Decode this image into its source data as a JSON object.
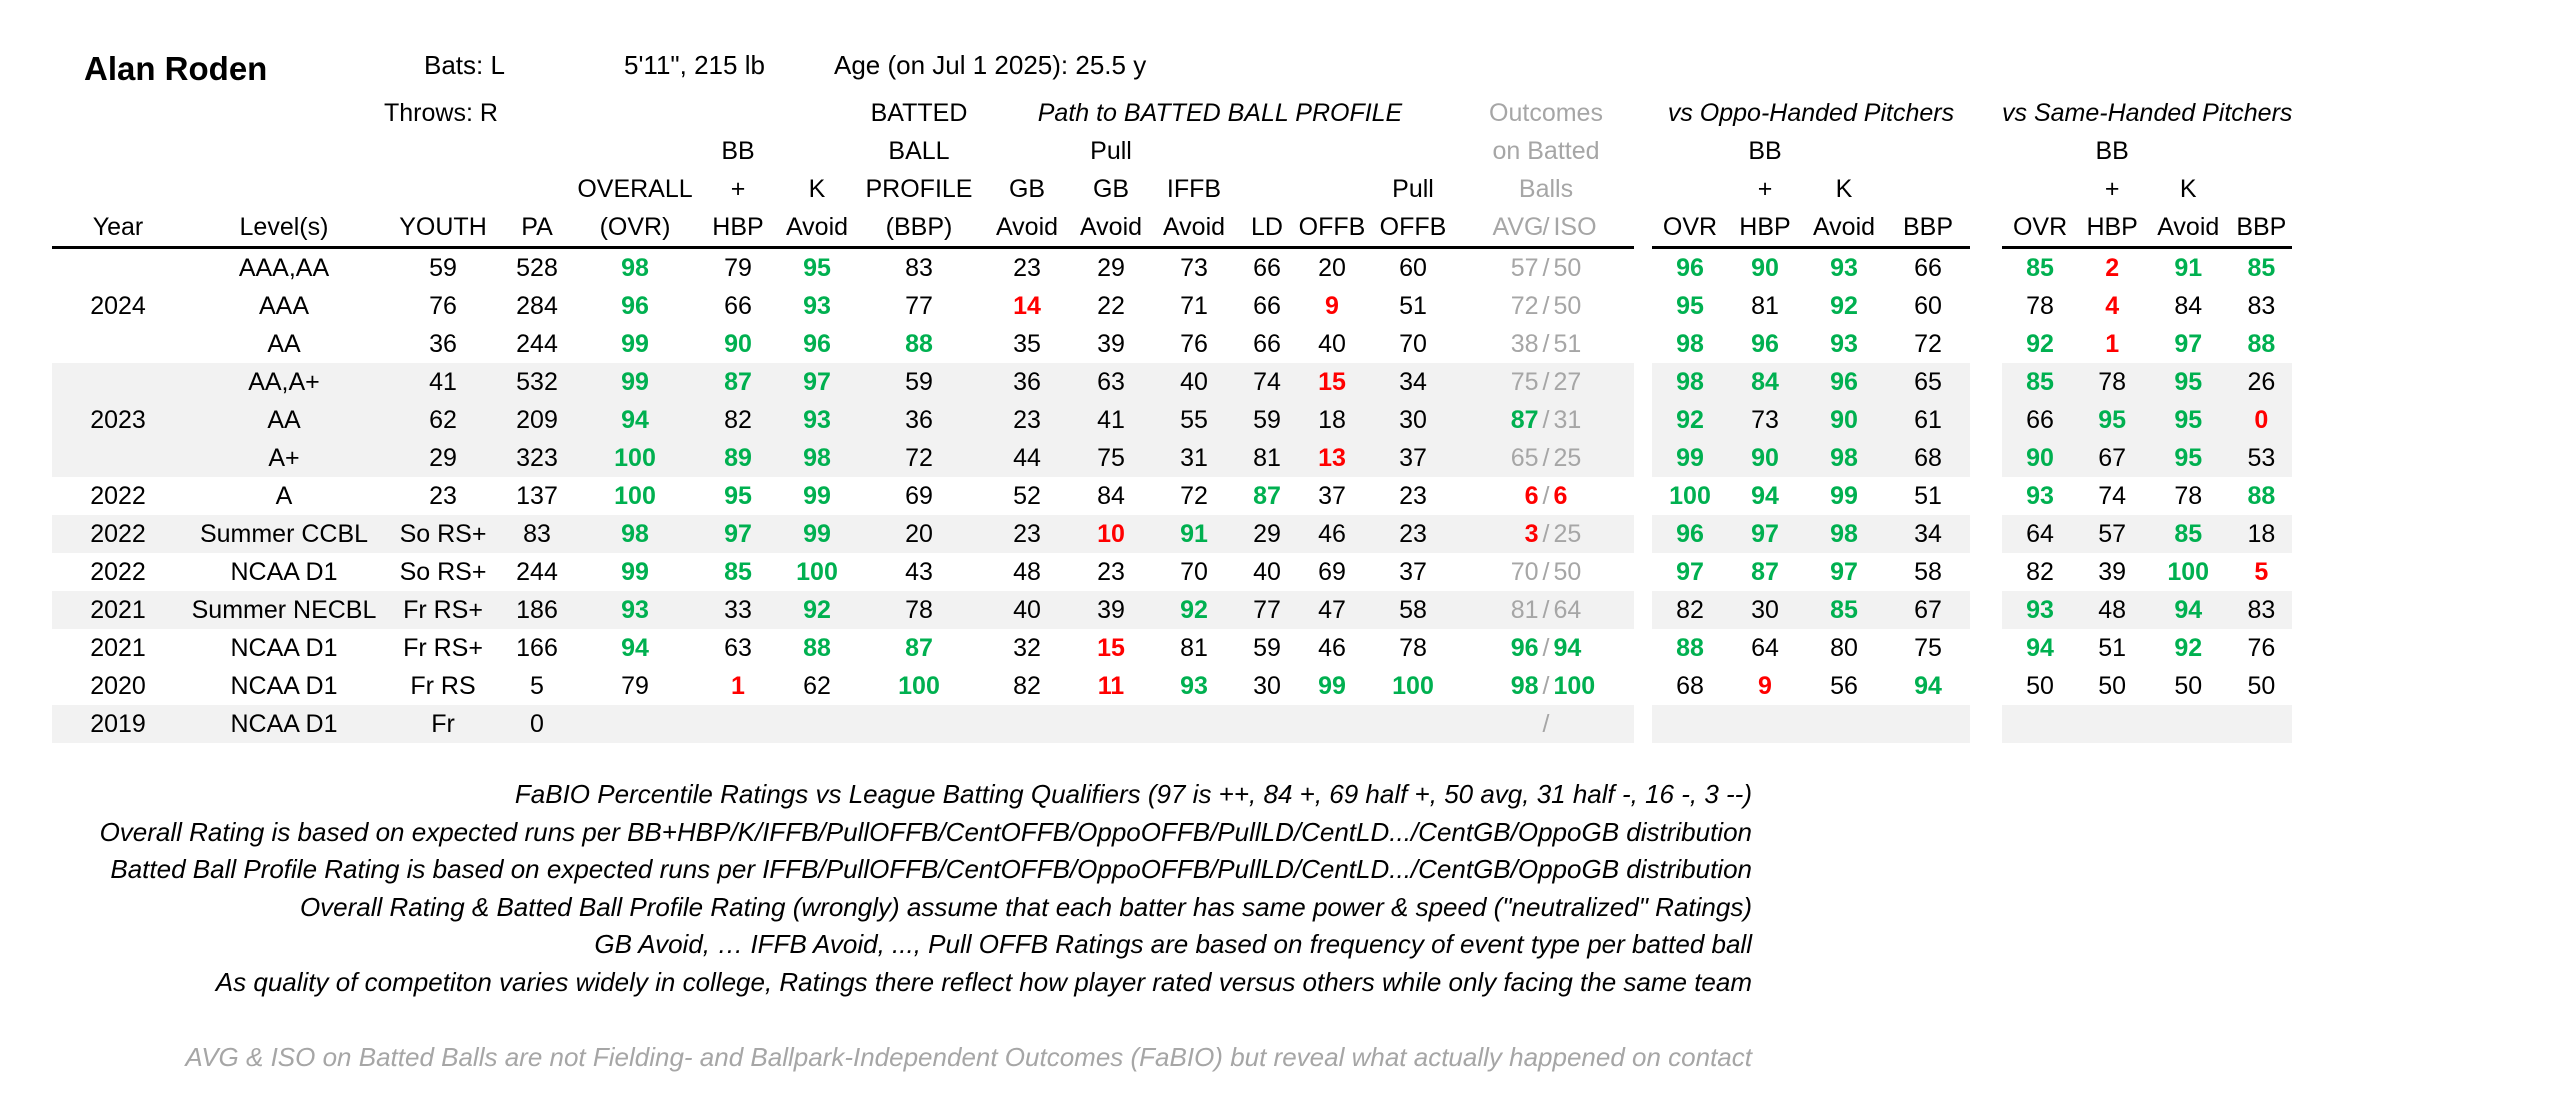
{
  "player": {
    "name": "Alan Roden",
    "bats": "Bats: L",
    "throws": "Throws: R",
    "size": "5'11\", 215 lb",
    "age": "Age (on Jul 1 2025): 25.5 y"
  },
  "headers": {
    "path_title": "Path to BATTED BALL PROFILE",
    "outcomes": [
      "Outcomes",
      "on Batted",
      "Balls",
      "AVG",
      "ISO"
    ],
    "vs_oppo": "vs Oppo-Handed Pitchers",
    "vs_same": "vs Same-Handed Pitchers",
    "year": "Year",
    "levels": "Level(s)",
    "youth": "YOUTH",
    "pa": "PA",
    "overall": [
      "OVERALL",
      "(OVR)"
    ],
    "bbhbp": [
      "BB",
      "+",
      "HBP"
    ],
    "kavoid": [
      "K",
      "Avoid"
    ],
    "bbp": [
      "BATTED",
      "BALL",
      "PROFILE",
      "(BBP)"
    ],
    "gbavoid": [
      "GB",
      "Avoid"
    ],
    "pullgb": [
      "Pull",
      "GB",
      "Avoid"
    ],
    "iffb": [
      "IFFB",
      "Avoid"
    ],
    "ld": "LD",
    "offb": "OFFB",
    "pulloffb": [
      "Pull",
      "OFFB"
    ],
    "ovr": "OVR",
    "bbp_short": "BBP",
    "slash": "/"
  },
  "colors": {
    "good": "#00b050",
    "bad": "#ff0000",
    "muted": "#a6a6a6"
  },
  "rows": [
    {
      "year": "",
      "level": "AAA,AA",
      "youth": "59",
      "pa": "528",
      "shade": false,
      "cells": [
        [
          "98",
          "g"
        ],
        [
          "79",
          ""
        ],
        [
          "95",
          "g"
        ],
        [
          "83",
          ""
        ],
        [
          "23",
          ""
        ],
        [
          "29",
          ""
        ],
        [
          "73",
          ""
        ],
        [
          "66",
          ""
        ],
        [
          "20",
          ""
        ],
        [
          "60",
          ""
        ]
      ],
      "avg": [
        "57",
        "gn"
      ],
      "iso": [
        "50",
        "gn"
      ],
      "oppo": [
        [
          "96",
          "g"
        ],
        [
          "90",
          "g"
        ],
        [
          "93",
          "g"
        ],
        [
          "66",
          ""
        ]
      ],
      "same": [
        [
          "85",
          "g"
        ],
        [
          "2",
          "r"
        ],
        [
          "91",
          "g"
        ],
        [
          "85",
          "g"
        ]
      ]
    },
    {
      "year": "2024",
      "level": "AAA",
      "youth": "76",
      "pa": "284",
      "shade": false,
      "cells": [
        [
          "96",
          "g"
        ],
        [
          "66",
          ""
        ],
        [
          "93",
          "g"
        ],
        [
          "77",
          ""
        ],
        [
          "14",
          "r"
        ],
        [
          "22",
          ""
        ],
        [
          "71",
          ""
        ],
        [
          "66",
          ""
        ],
        [
          "9",
          "r"
        ],
        [
          "51",
          ""
        ]
      ],
      "avg": [
        "72",
        "gn"
      ],
      "iso": [
        "50",
        "gn"
      ],
      "oppo": [
        [
          "95",
          "g"
        ],
        [
          "81",
          ""
        ],
        [
          "92",
          "g"
        ],
        [
          "60",
          ""
        ]
      ],
      "same": [
        [
          "78",
          ""
        ],
        [
          "4",
          "r"
        ],
        [
          "84",
          ""
        ],
        [
          "83",
          ""
        ]
      ]
    },
    {
      "year": "",
      "level": "AA",
      "youth": "36",
      "pa": "244",
      "shade": false,
      "cells": [
        [
          "99",
          "g"
        ],
        [
          "90",
          "g"
        ],
        [
          "96",
          "g"
        ],
        [
          "88",
          "g"
        ],
        [
          "35",
          ""
        ],
        [
          "39",
          ""
        ],
        [
          "76",
          ""
        ],
        [
          "66",
          ""
        ],
        [
          "40",
          ""
        ],
        [
          "70",
          ""
        ]
      ],
      "avg": [
        "38",
        "gn"
      ],
      "iso": [
        "51",
        "gn"
      ],
      "oppo": [
        [
          "98",
          "g"
        ],
        [
          "96",
          "g"
        ],
        [
          "93",
          "g"
        ],
        [
          "72",
          ""
        ]
      ],
      "same": [
        [
          "92",
          "g"
        ],
        [
          "1",
          "r"
        ],
        [
          "97",
          "g"
        ],
        [
          "88",
          "g"
        ]
      ]
    },
    {
      "year": "",
      "level": "AA,A+",
      "youth": "41",
      "pa": "532",
      "shade": true,
      "cells": [
        [
          "99",
          "g"
        ],
        [
          "87",
          "g"
        ],
        [
          "97",
          "g"
        ],
        [
          "59",
          ""
        ],
        [
          "36",
          ""
        ],
        [
          "63",
          ""
        ],
        [
          "40",
          ""
        ],
        [
          "74",
          ""
        ],
        [
          "15",
          "r"
        ],
        [
          "34",
          ""
        ]
      ],
      "avg": [
        "75",
        "gn"
      ],
      "iso": [
        "27",
        "gn"
      ],
      "oppo": [
        [
          "98",
          "g"
        ],
        [
          "84",
          "g"
        ],
        [
          "96",
          "g"
        ],
        [
          "65",
          ""
        ]
      ],
      "same": [
        [
          "85",
          "g"
        ],
        [
          "78",
          ""
        ],
        [
          "95",
          "g"
        ],
        [
          "26",
          ""
        ]
      ]
    },
    {
      "year": "2023",
      "level": "AA",
      "youth": "62",
      "pa": "209",
      "shade": true,
      "cells": [
        [
          "94",
          "g"
        ],
        [
          "82",
          ""
        ],
        [
          "93",
          "g"
        ],
        [
          "36",
          ""
        ],
        [
          "23",
          ""
        ],
        [
          "41",
          ""
        ],
        [
          "55",
          ""
        ],
        [
          "59",
          ""
        ],
        [
          "18",
          ""
        ],
        [
          "30",
          ""
        ]
      ],
      "avg": [
        "87",
        "g"
      ],
      "iso": [
        "31",
        "gn"
      ],
      "oppo": [
        [
          "92",
          "g"
        ],
        [
          "73",
          ""
        ],
        [
          "90",
          "g"
        ],
        [
          "61",
          ""
        ]
      ],
      "same": [
        [
          "66",
          ""
        ],
        [
          "95",
          "g"
        ],
        [
          "95",
          "g"
        ],
        [
          "0",
          "r"
        ]
      ]
    },
    {
      "year": "",
      "level": "A+",
      "youth": "29",
      "pa": "323",
      "shade": true,
      "cells": [
        [
          "100",
          "g"
        ],
        [
          "89",
          "g"
        ],
        [
          "98",
          "g"
        ],
        [
          "72",
          ""
        ],
        [
          "44",
          ""
        ],
        [
          "75",
          ""
        ],
        [
          "31",
          ""
        ],
        [
          "81",
          ""
        ],
        [
          "13",
          "r"
        ],
        [
          "37",
          ""
        ]
      ],
      "avg": [
        "65",
        "gn"
      ],
      "iso": [
        "25",
        "gn"
      ],
      "oppo": [
        [
          "99",
          "g"
        ],
        [
          "90",
          "g"
        ],
        [
          "98",
          "g"
        ],
        [
          "68",
          ""
        ]
      ],
      "same": [
        [
          "90",
          "g"
        ],
        [
          "67",
          ""
        ],
        [
          "95",
          "g"
        ],
        [
          "53",
          ""
        ]
      ]
    },
    {
      "year": "2022",
      "level": "A",
      "youth": "23",
      "pa": "137",
      "shade": false,
      "cells": [
        [
          "100",
          "g"
        ],
        [
          "95",
          "g"
        ],
        [
          "99",
          "g"
        ],
        [
          "69",
          ""
        ],
        [
          "52",
          ""
        ],
        [
          "84",
          ""
        ],
        [
          "72",
          ""
        ],
        [
          "87",
          "g"
        ],
        [
          "37",
          ""
        ],
        [
          "23",
          ""
        ]
      ],
      "avg": [
        "6",
        "r"
      ],
      "iso": [
        "6",
        "r"
      ],
      "oppo": [
        [
          "100",
          "g"
        ],
        [
          "94",
          "g"
        ],
        [
          "99",
          "g"
        ],
        [
          "51",
          ""
        ]
      ],
      "same": [
        [
          "93",
          "g"
        ],
        [
          "74",
          ""
        ],
        [
          "78",
          ""
        ],
        [
          "88",
          "g"
        ]
      ]
    },
    {
      "year": "2022",
      "level": "Summer CCBL",
      "youth": "So RS+",
      "pa": "83",
      "shade": true,
      "cells": [
        [
          "98",
          "g"
        ],
        [
          "97",
          "g"
        ],
        [
          "99",
          "g"
        ],
        [
          "20",
          ""
        ],
        [
          "23",
          ""
        ],
        [
          "10",
          "r"
        ],
        [
          "91",
          "g"
        ],
        [
          "29",
          ""
        ],
        [
          "46",
          ""
        ],
        [
          "23",
          ""
        ]
      ],
      "avg": [
        "3",
        "r"
      ],
      "iso": [
        "25",
        "gn"
      ],
      "oppo": [
        [
          "96",
          "g"
        ],
        [
          "97",
          "g"
        ],
        [
          "98",
          "g"
        ],
        [
          "34",
          ""
        ]
      ],
      "same": [
        [
          "64",
          ""
        ],
        [
          "57",
          ""
        ],
        [
          "85",
          "g"
        ],
        [
          "18",
          ""
        ]
      ]
    },
    {
      "year": "2022",
      "level": "NCAA D1",
      "youth": "So RS+",
      "pa": "244",
      "shade": false,
      "cells": [
        [
          "99",
          "g"
        ],
        [
          "85",
          "g"
        ],
        [
          "100",
          "g"
        ],
        [
          "43",
          ""
        ],
        [
          "48",
          ""
        ],
        [
          "23",
          ""
        ],
        [
          "70",
          ""
        ],
        [
          "40",
          ""
        ],
        [
          "69",
          ""
        ],
        [
          "37",
          ""
        ]
      ],
      "avg": [
        "70",
        "gn"
      ],
      "iso": [
        "50",
        "gn"
      ],
      "oppo": [
        [
          "97",
          "g"
        ],
        [
          "87",
          "g"
        ],
        [
          "97",
          "g"
        ],
        [
          "58",
          ""
        ]
      ],
      "same": [
        [
          "82",
          ""
        ],
        [
          "39",
          ""
        ],
        [
          "100",
          "g"
        ],
        [
          "5",
          "r"
        ]
      ]
    },
    {
      "year": "2021",
      "level": "Summer NECBL",
      "youth": "Fr RS+",
      "pa": "186",
      "shade": true,
      "cells": [
        [
          "93",
          "g"
        ],
        [
          "33",
          ""
        ],
        [
          "92",
          "g"
        ],
        [
          "78",
          ""
        ],
        [
          "40",
          ""
        ],
        [
          "39",
          ""
        ],
        [
          "92",
          "g"
        ],
        [
          "77",
          ""
        ],
        [
          "47",
          ""
        ],
        [
          "58",
          ""
        ]
      ],
      "avg": [
        "81",
        "gn"
      ],
      "iso": [
        "64",
        "gn"
      ],
      "oppo": [
        [
          "82",
          ""
        ],
        [
          "30",
          ""
        ],
        [
          "85",
          "g"
        ],
        [
          "67",
          ""
        ]
      ],
      "same": [
        [
          "93",
          "g"
        ],
        [
          "48",
          ""
        ],
        [
          "94",
          "g"
        ],
        [
          "83",
          ""
        ]
      ]
    },
    {
      "year": "2021",
      "level": "NCAA D1",
      "youth": "Fr RS+",
      "pa": "166",
      "shade": false,
      "cells": [
        [
          "94",
          "g"
        ],
        [
          "63",
          ""
        ],
        [
          "88",
          "g"
        ],
        [
          "87",
          "g"
        ],
        [
          "32",
          ""
        ],
        [
          "15",
          "r"
        ],
        [
          "81",
          ""
        ],
        [
          "59",
          ""
        ],
        [
          "46",
          ""
        ],
        [
          "78",
          ""
        ]
      ],
      "avg": [
        "96",
        "g"
      ],
      "iso": [
        "94",
        "g"
      ],
      "oppo": [
        [
          "88",
          "g"
        ],
        [
          "64",
          ""
        ],
        [
          "80",
          ""
        ],
        [
          "75",
          ""
        ]
      ],
      "same": [
        [
          "94",
          "g"
        ],
        [
          "51",
          ""
        ],
        [
          "92",
          "g"
        ],
        [
          "76",
          ""
        ]
      ]
    },
    {
      "year": "2020",
      "level": "NCAA D1",
      "youth": "Fr RS",
      "pa": "5",
      "shade": false,
      "cells": [
        [
          "79",
          ""
        ],
        [
          "1",
          "r"
        ],
        [
          "62",
          ""
        ],
        [
          "100",
          "g"
        ],
        [
          "82",
          ""
        ],
        [
          "11",
          "r"
        ],
        [
          "93",
          "g"
        ],
        [
          "30",
          ""
        ],
        [
          "99",
          "g"
        ],
        [
          "100",
          "g"
        ]
      ],
      "avg": [
        "98",
        "g"
      ],
      "iso": [
        "100",
        "g"
      ],
      "oppo": [
        [
          "68",
          ""
        ],
        [
          "9",
          "r"
        ],
        [
          "56",
          ""
        ],
        [
          "94",
          "g"
        ]
      ],
      "same": [
        [
          "50",
          ""
        ],
        [
          "50",
          ""
        ],
        [
          "50",
          ""
        ],
        [
          "50",
          ""
        ]
      ]
    },
    {
      "year": "2019",
      "level": "NCAA D1",
      "youth": "Fr",
      "pa": "0",
      "shade": true,
      "cells": [
        [
          "",
          ""
        ],
        [
          "",
          ""
        ],
        [
          "",
          ""
        ],
        [
          "",
          ""
        ],
        [
          "",
          ""
        ],
        [
          "",
          ""
        ],
        [
          "",
          ""
        ],
        [
          "",
          ""
        ],
        [
          "",
          ""
        ],
        [
          "",
          ""
        ]
      ],
      "avg": [
        "",
        ""
      ],
      "iso": [
        "",
        ""
      ],
      "oppo": [
        [
          "",
          ""
        ],
        [
          "",
          ""
        ],
        [
          "",
          ""
        ],
        [
          "",
          ""
        ]
      ],
      "same": [
        [
          "",
          ""
        ],
        [
          "",
          ""
        ],
        [
          "",
          ""
        ],
        [
          "",
          ""
        ]
      ]
    }
  ],
  "notes": [
    "FaBIO Percentile Ratings vs League Batting Qualifiers (97 is ++, 84 +, 69 half +, 50 avg, 31 half -, 16 -, 3 --)",
    "Overall Rating is based on expected runs per BB+HBP/K/IFFB/PullOFFB/CentOFFB/OppoOFFB/PullLD/CentLD.../CentGB/OppoGB distribution",
    "Batted Ball Profile Rating is based on expected runs per IFFB/PullOFFB/CentOFFB/OppoOFFB/PullLD/CentLD.../CentGB/OppoGB distribution",
    "Overall Rating & Batted Ball Profile Rating (wrongly) assume that each batter has same power & speed (\"neutralized\" Ratings)",
    "GB Avoid, … IFFB Avoid, ..., Pull OFFB Ratings are based on frequency of event type per batted ball",
    "As quality of competiton varies widely in college, Ratings there reflect how player rated versus others while only facing the same team"
  ],
  "footnote": "AVG & ISO on Batted Balls are not Fielding- and Ballpark-Independent Outcomes (FaBIO) but reveal what actually happened on contact"
}
